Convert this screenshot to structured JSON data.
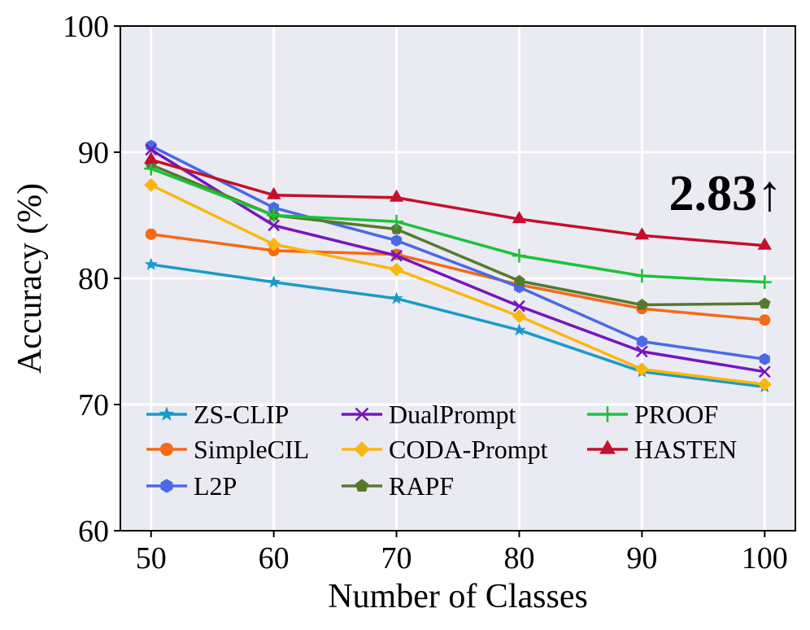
{
  "chart_data": {
    "type": "line",
    "title": "",
    "xlabel": "Number of Classes",
    "ylabel": "Accuracy (%)",
    "x": [
      50,
      60,
      70,
      80,
      90,
      100
    ],
    "x_ticks": [
      "50",
      "60",
      "70",
      "80",
      "90",
      "100"
    ],
    "y_ticks": [
      "60",
      "70",
      "80",
      "90",
      "100"
    ],
    "xlim": [
      47.5,
      102.5
    ],
    "ylim": [
      60,
      100
    ],
    "grid": true,
    "background": "#eaeaf2",
    "legend_position": "lower-left",
    "annotation": "2.83↑",
    "series": [
      {
        "name": "ZS-CLIP",
        "color": "#1a9ac9",
        "marker": "star",
        "values": [
          81.1,
          79.7,
          78.4,
          75.9,
          72.6,
          71.4
        ]
      },
      {
        "name": "SimpleCIL",
        "color": "#f46a16",
        "marker": "circle",
        "values": [
          83.5,
          82.2,
          81.9,
          79.5,
          77.6,
          76.7
        ]
      },
      {
        "name": "L2P",
        "color": "#4a69e6",
        "marker": "hexagon",
        "values": [
          90.5,
          85.6,
          83.0,
          79.3,
          75.0,
          73.6
        ]
      },
      {
        "name": "DualPrompt",
        "color": "#7416bd",
        "marker": "x",
        "values": [
          90.2,
          84.2,
          81.8,
          77.8,
          74.2,
          72.6
        ]
      },
      {
        "name": "CODA-Prompt",
        "color": "#fbb60f",
        "marker": "diamond",
        "values": [
          87.4,
          82.7,
          80.7,
          77.0,
          72.8,
          71.6
        ]
      },
      {
        "name": "RAPF",
        "color": "#557a2d",
        "marker": "pentagon",
        "values": [
          89.0,
          85.0,
          83.9,
          79.8,
          77.9,
          78.0
        ]
      },
      {
        "name": "PROOF",
        "color": "#1ec13a",
        "marker": "plus",
        "values": [
          88.7,
          85.0,
          84.5,
          81.8,
          80.2,
          79.7
        ]
      },
      {
        "name": "HASTEN",
        "color": "#c40f2e",
        "marker": "triangle",
        "values": [
          89.4,
          86.6,
          86.4,
          84.7,
          83.4,
          82.6
        ]
      }
    ]
  }
}
